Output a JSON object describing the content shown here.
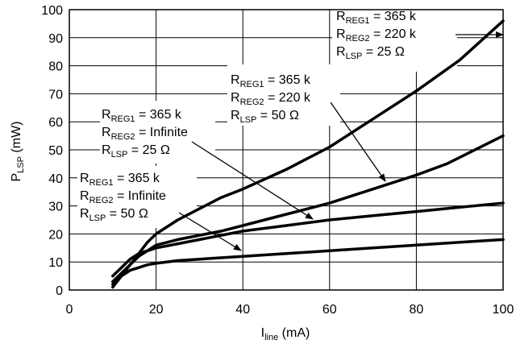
{
  "chart_data": {
    "type": "line",
    "title": "",
    "xlabel": "I",
    "xlabel_sub": "line",
    "xlabel_unit": " (mA)",
    "ylabel": "P",
    "ylabel_sub": "LSP",
    "ylabel_unit": " (mW)",
    "xlim": [
      0,
      100
    ],
    "ylim": [
      0,
      100
    ],
    "xticks": [
      "0",
      "20",
      "40",
      "60",
      "80",
      "100"
    ],
    "yticks": [
      "0",
      "10",
      "20",
      "30",
      "40",
      "50",
      "60",
      "70",
      "80",
      "90",
      "100"
    ],
    "grid": true,
    "series": [
      {
        "x": [
          10,
          12,
          14,
          16,
          18,
          20,
          22,
          25,
          30,
          35,
          40,
          50,
          60,
          70,
          80,
          90,
          100
        ],
        "y": [
          2,
          5,
          9,
          13,
          17,
          20,
          22,
          25,
          29,
          33,
          36,
          43,
          51,
          61,
          71,
          82,
          96
        ]
      },
      {
        "x": [
          10,
          12,
          14,
          16,
          18,
          20,
          25,
          30,
          35,
          40,
          50,
          60,
          70,
          80,
          87,
          100
        ],
        "y": [
          3,
          6,
          9,
          12,
          14,
          16,
          18,
          19.5,
          21,
          23,
          27,
          31,
          36,
          41,
          45,
          55
        ]
      },
      {
        "x": [
          10,
          12,
          14,
          16,
          18,
          20,
          25,
          30,
          40,
          50,
          60,
          70,
          80,
          90,
          100
        ],
        "y": [
          5,
          8,
          11,
          13,
          14,
          15,
          16.5,
          18,
          21,
          23,
          25,
          26.5,
          28,
          29.5,
          31
        ]
      },
      {
        "x": [
          10,
          12,
          14,
          16,
          18,
          20,
          25,
          30,
          40,
          50,
          60,
          70,
          80,
          90,
          100
        ],
        "y": [
          1,
          5,
          7,
          8,
          9,
          9.5,
          10.5,
          11,
          12,
          13,
          14,
          15,
          16,
          17,
          18
        ]
      }
    ],
    "annotations": [
      {
        "lines": [
          {
            "main": "R",
            "sub": "REG1",
            "rest": " = 365 k"
          },
          {
            "main": "R",
            "sub": "REG2",
            "rest": " = 220 k"
          },
          {
            "main": "R",
            "sub": "LSP",
            "rest": " = 25 Ω"
          }
        ]
      },
      {
        "lines": [
          {
            "main": "R",
            "sub": "REG1",
            "rest": " = 365 k"
          },
          {
            "main": "R",
            "sub": "REG2",
            "rest": " = 220 k"
          },
          {
            "main": "R",
            "sub": "LSP",
            "rest": " = 50 Ω"
          }
        ]
      },
      {
        "lines": [
          {
            "main": "R",
            "sub": "REG1",
            "rest": " = 365 k"
          },
          {
            "main": "R",
            "sub": "REG2",
            "rest": " = Infinite"
          },
          {
            "main": "R",
            "sub": "LSP",
            "rest": " = 25 Ω"
          }
        ]
      },
      {
        "lines": [
          {
            "main": "R",
            "sub": "REG1",
            "rest": " = 365 k"
          },
          {
            "main": "R",
            "sub": "REG2",
            "rest": " = Infinite"
          },
          {
            "main": "R",
            "sub": "LSP",
            "rest": " = 50 Ω"
          }
        ]
      }
    ]
  }
}
